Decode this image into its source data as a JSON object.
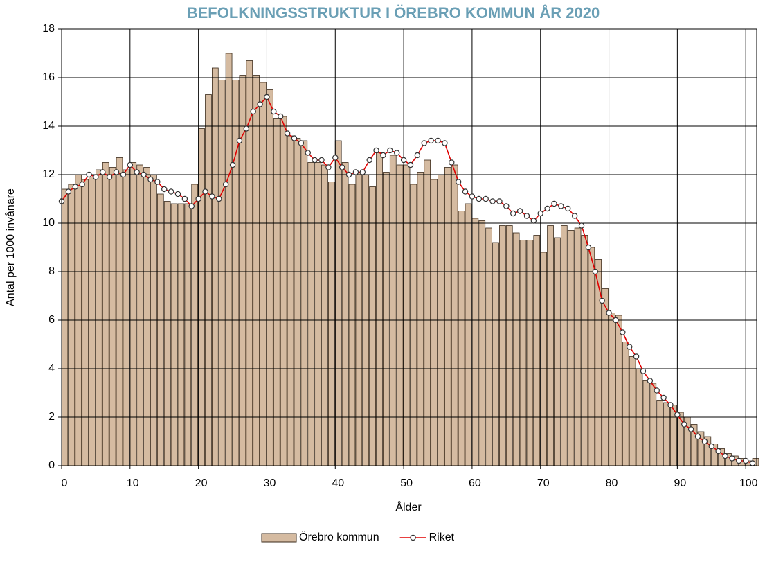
{
  "chart_data": {
    "type": "bar",
    "title": "BEFOLKNINGSSTRUKTUR I ÖREBRO KOMMUN ÅR 2020",
    "x_label": "Ålder",
    "y_label": "Antal per 1000 invånare",
    "x": [
      0,
      1,
      2,
      3,
      4,
      5,
      6,
      7,
      8,
      9,
      10,
      11,
      12,
      13,
      14,
      15,
      16,
      17,
      18,
      19,
      20,
      21,
      22,
      23,
      24,
      25,
      26,
      27,
      28,
      29,
      30,
      31,
      32,
      33,
      34,
      35,
      36,
      37,
      38,
      39,
      40,
      41,
      42,
      43,
      44,
      45,
      46,
      47,
      48,
      49,
      50,
      51,
      52,
      53,
      54,
      55,
      56,
      57,
      58,
      59,
      60,
      61,
      62,
      63,
      64,
      65,
      66,
      67,
      68,
      69,
      70,
      71,
      72,
      73,
      74,
      75,
      76,
      77,
      78,
      79,
      80,
      81,
      82,
      83,
      84,
      85,
      86,
      87,
      88,
      89,
      90,
      91,
      92,
      93,
      94,
      95,
      96,
      97,
      98,
      99,
      100,
      101
    ],
    "series": [
      {
        "name": "Örebro kommun",
        "type": "bar",
        "color": "#d5bba1",
        "values": [
          11.4,
          11.6,
          12.0,
          11.8,
          11.9,
          12.2,
          12.5,
          12.3,
          12.7,
          12.2,
          12.5,
          12.4,
          12.3,
          12.0,
          11.2,
          10.9,
          10.8,
          10.8,
          10.8,
          11.6,
          13.9,
          15.3,
          16.4,
          15.9,
          17.0,
          15.9,
          16.1,
          16.7,
          16.1,
          15.8,
          15.5,
          14.3,
          14.4,
          13.6,
          13.5,
          13.4,
          12.5,
          12.5,
          12.4,
          11.7,
          13.4,
          12.5,
          11.6,
          12.1,
          12.0,
          11.5,
          12.9,
          12.1,
          12.8,
          12.4,
          12.4,
          11.6,
          12.1,
          12.6,
          11.8,
          12.0,
          12.3,
          12.4,
          10.5,
          10.8,
          10.2,
          10.1,
          9.8,
          9.2,
          9.9,
          9.9,
          9.6,
          9.3,
          9.3,
          9.5,
          8.8,
          9.9,
          9.4,
          9.9,
          9.7,
          9.8,
          9.5,
          9.0,
          8.5,
          7.3,
          6.3,
          6.2,
          5.1,
          4.5,
          4.0,
          3.5,
          3.4,
          2.7,
          2.6,
          2.5,
          2.2,
          2.0,
          1.7,
          1.4,
          1.2,
          0.9,
          0.7,
          0.5,
          0.4,
          0.3,
          0.2,
          0.3
        ]
      },
      {
        "name": "Riket",
        "type": "line",
        "color": "#e00000",
        "values": [
          10.9,
          11.3,
          11.5,
          11.6,
          12.0,
          11.9,
          12.1,
          11.9,
          12.1,
          12.0,
          12.4,
          12.1,
          12.0,
          11.8,
          11.7,
          11.4,
          11.3,
          11.2,
          11.0,
          10.7,
          11.0,
          11.3,
          11.1,
          11.0,
          11.6,
          12.4,
          13.4,
          13.9,
          14.6,
          14.9,
          15.2,
          14.6,
          14.4,
          13.7,
          13.5,
          13.3,
          12.9,
          12.6,
          12.6,
          12.3,
          12.7,
          12.3,
          12.0,
          12.1,
          12.1,
          12.6,
          13.0,
          12.8,
          13.0,
          12.9,
          12.6,
          12.4,
          12.8,
          13.3,
          13.4,
          13.4,
          13.3,
          12.5,
          11.7,
          11.3,
          11.1,
          11.0,
          11.0,
          10.9,
          10.9,
          10.7,
          10.4,
          10.5,
          10.3,
          10.1,
          10.4,
          10.6,
          10.8,
          10.7,
          10.6,
          10.3,
          9.9,
          9.0,
          8.0,
          6.8,
          6.3,
          6.0,
          5.5,
          4.9,
          4.5,
          3.9,
          3.5,
          3.1,
          2.8,
          2.5,
          2.1,
          1.7,
          1.5,
          1.2,
          1.0,
          0.8,
          0.6,
          0.4,
          0.3,
          0.2,
          0.2,
          0.1
        ]
      }
    ],
    "xlim": [
      0,
      101.6
    ],
    "xticks": [
      0,
      10,
      20,
      30,
      40,
      50,
      60,
      70,
      80,
      90,
      100
    ],
    "ylim": [
      0,
      18
    ],
    "yticks": [
      0,
      2,
      4,
      6,
      8,
      10,
      12,
      14,
      16,
      18
    ],
    "grid": true,
    "legend": "bottom"
  }
}
